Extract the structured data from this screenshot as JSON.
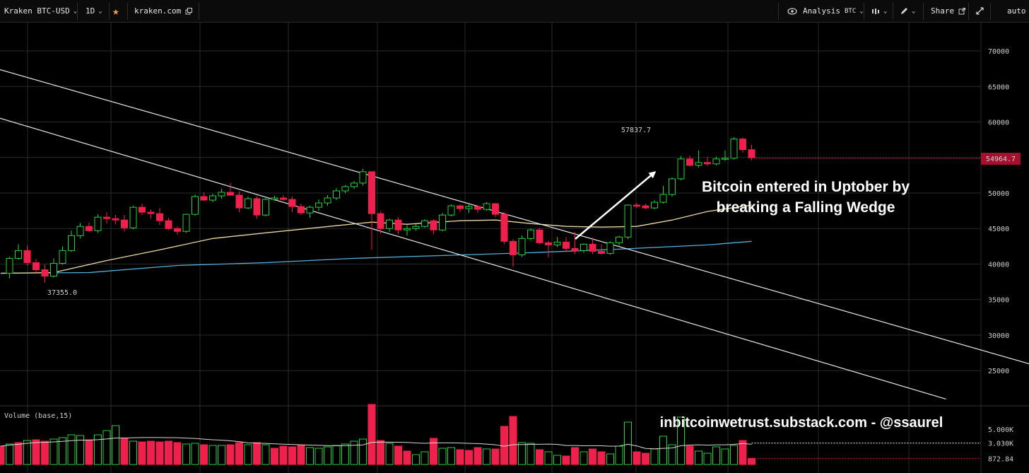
{
  "toolbar": {
    "symbol": "Kraken BTC-USD",
    "interval": "1D",
    "source": "kraken.com",
    "analysis": "Analysis",
    "analysis_sub": "BTC",
    "share": "Share",
    "scale_mode": "auto"
  },
  "icons": {
    "favorite": "star-icon",
    "external": "external-link-icon",
    "eye": "eye-icon",
    "candles": "candles-icon",
    "pencil": "pencil-icon",
    "expand": "expand-icon"
  },
  "colors": {
    "up": "#27d13a",
    "down": "#f0204c",
    "ma_fast": "#e8d9a0",
    "ma_slow": "#4fb3d9",
    "trendline": "#e8e8e8"
  },
  "annotations": {
    "message_line1": "Bitcoin entered in Uptober by",
    "message_line2": "breaking a Falling Wedge",
    "watermark": "inbitcoinwetrust.substack.com - @ssaurel",
    "high_label": "57837.7",
    "low_label": "37355.0",
    "last_price": "54964.7"
  },
  "volume_panel": {
    "title": "Volume (base,15)",
    "ticks": [
      "5.000K",
      "3.030K",
      "872.84"
    ]
  },
  "chart_data": {
    "type": "candlestick",
    "y_ticks": [
      70000,
      65000,
      60000,
      55000,
      50000,
      45000,
      40000,
      35000,
      30000,
      25000
    ],
    "ylim": [
      21000,
      74500
    ],
    "candles": [
      [
        null,
        null,
        null,
        null
      ],
      [
        38700,
        41000,
        38000,
        40800
      ],
      [
        40800,
        42800,
        40600,
        41900
      ],
      [
        41900,
        42600,
        39800,
        40200
      ],
      [
        40200,
        40700,
        38800,
        39200
      ],
      [
        39200,
        39900,
        37355,
        38300
      ],
      [
        38300,
        40800,
        38100,
        40100
      ],
      [
        40100,
        42500,
        39900,
        41900
      ],
      [
        41900,
        44700,
        41700,
        44000
      ],
      [
        44000,
        45800,
        43600,
        45300
      ],
      [
        45300,
        45900,
        44500,
        44700
      ],
      [
        44700,
        47000,
        44400,
        46600
      ],
      [
        46600,
        47300,
        45700,
        46400
      ],
      [
        46400,
        46900,
        45600,
        46200
      ],
      [
        46200,
        46900,
        44600,
        45100
      ],
      [
        45100,
        48200,
        44900,
        48000
      ],
      [
        48000,
        48500,
        46900,
        47300
      ],
      [
        47300,
        47700,
        46400,
        47100
      ],
      [
        47100,
        47900,
        45500,
        46100
      ],
      [
        46100,
        46500,
        44800,
        45000
      ],
      [
        45000,
        45300,
        44100,
        44600
      ],
      [
        44600,
        47100,
        44400,
        47000
      ],
      [
        47000,
        49800,
        46800,
        49500
      ],
      [
        49500,
        50100,
        48900,
        49000
      ],
      [
        49000,
        49900,
        48700,
        49600
      ],
      [
        49600,
        50600,
        49200,
        50100
      ],
      [
        50100,
        51400,
        49600,
        49700
      ],
      [
        49700,
        50200,
        47300,
        47900
      ],
      [
        47900,
        49500,
        47700,
        49200
      ],
      [
        49200,
        49500,
        46400,
        46900
      ],
      [
        46900,
        49300,
        46700,
        49100
      ],
      [
        49100,
        49600,
        48900,
        49300
      ],
      [
        49300,
        49700,
        48900,
        49100
      ],
      [
        49100,
        49500,
        47300,
        48100
      ],
      [
        48100,
        48500,
        46900,
        47200
      ],
      [
        47200,
        48200,
        46500,
        48000
      ],
      [
        48000,
        49100,
        47500,
        48600
      ],
      [
        48600,
        49700,
        48200,
        49300
      ],
      [
        49300,
        50700,
        49000,
        50300
      ],
      [
        50300,
        51100,
        50000,
        50900
      ],
      [
        50900,
        51700,
        50600,
        51400
      ],
      [
        51400,
        53400,
        51100,
        53000
      ],
      [
        53000,
        53000,
        42000,
        47100
      ],
      [
        47100,
        47400,
        44300,
        45000
      ],
      [
        45000,
        46400,
        44500,
        46200
      ],
      [
        46200,
        46600,
        44200,
        44800
      ],
      [
        44800,
        45500,
        44000,
        45000
      ],
      [
        45000,
        45600,
        44700,
        45300
      ],
      [
        45300,
        46300,
        45100,
        46100
      ],
      [
        46100,
        46300,
        44200,
        44800
      ],
      [
        44800,
        47200,
        44600,
        46900
      ],
      [
        46900,
        48400,
        46700,
        48200
      ],
      [
        48200,
        48400,
        47300,
        47800
      ],
      [
        47800,
        48400,
        47200,
        48100
      ],
      [
        48100,
        48300,
        47200,
        47700
      ],
      [
        47700,
        48700,
        47500,
        48500
      ],
      [
        48500,
        48600,
        46600,
        47000
      ],
      [
        47000,
        47300,
        42800,
        43200
      ],
      [
        43200,
        43500,
        39600,
        41300
      ],
      [
        41300,
        44000,
        41000,
        43600
      ],
      [
        43600,
        45000,
        43300,
        44800
      ],
      [
        44800,
        45100,
        42800,
        43000
      ],
      [
        43000,
        43300,
        40900,
        42700
      ],
      [
        42700,
        43800,
        42400,
        43100
      ],
      [
        43100,
        43800,
        41700,
        42200
      ],
      [
        42200,
        44500,
        41400,
        41900
      ],
      [
        41900,
        42900,
        41600,
        42800
      ],
      [
        42800,
        43700,
        41400,
        41800
      ],
      [
        41800,
        42800,
        41300,
        41500
      ],
      [
        41500,
        43200,
        41300,
        43000
      ],
      [
        43000,
        44000,
        42600,
        43800
      ],
      [
        43800,
        48400,
        43500,
        48300
      ],
      [
        48300,
        48600,
        47900,
        48200
      ],
      [
        48200,
        48500,
        47700,
        47900
      ],
      [
        47900,
        49000,
        47700,
        48700
      ],
      [
        48700,
        51000,
        48500,
        49800
      ],
      [
        49800,
        52200,
        49500,
        52000
      ],
      [
        52000,
        55200,
        51800,
        54800
      ],
      [
        54800,
        55300,
        53700,
        53900
      ],
      [
        53900,
        56000,
        53600,
        54300
      ],
      [
        54300,
        55100,
        53800,
        54100
      ],
      [
        54100,
        55100,
        53900,
        54800
      ],
      [
        54800,
        56000,
        54500,
        54900
      ],
      [
        54900,
        57837.7,
        54700,
        57600
      ],
      [
        57600,
        57800,
        55700,
        56100
      ],
      [
        56100,
        56800,
        54600,
        54964.7
      ]
    ],
    "volume": [
      [
        2600,
        0
      ],
      [
        2900,
        1
      ],
      [
        3100,
        0
      ],
      [
        3400,
        1
      ],
      [
        3500,
        0
      ],
      [
        3300,
        0
      ],
      [
        3600,
        1
      ],
      [
        3800,
        1
      ],
      [
        4200,
        1
      ],
      [
        4100,
        1
      ],
      [
        3500,
        0
      ],
      [
        4200,
        1
      ],
      [
        4800,
        1
      ],
      [
        5500,
        1
      ],
      [
        3700,
        0
      ],
      [
        3300,
        1
      ],
      [
        3200,
        0
      ],
      [
        3300,
        0
      ],
      [
        3200,
        0
      ],
      [
        3300,
        0
      ],
      [
        3100,
        0
      ],
      [
        2900,
        1
      ],
      [
        3000,
        1
      ],
      [
        2800,
        0
      ],
      [
        2700,
        1
      ],
      [
        2700,
        1
      ],
      [
        2800,
        0
      ],
      [
        3100,
        0
      ],
      [
        2800,
        1
      ],
      [
        3100,
        0
      ],
      [
        2800,
        1
      ],
      [
        2300,
        0
      ],
      [
        2600,
        0
      ],
      [
        2500,
        0
      ],
      [
        2700,
        0
      ],
      [
        2400,
        1
      ],
      [
        2300,
        1
      ],
      [
        2500,
        1
      ],
      [
        2700,
        1
      ],
      [
        2900,
        1
      ],
      [
        3300,
        1
      ],
      [
        3600,
        1
      ],
      [
        8500,
        0
      ],
      [
        3400,
        0
      ],
      [
        3000,
        1
      ],
      [
        2600,
        0
      ],
      [
        1900,
        0
      ],
      [
        1400,
        1
      ],
      [
        1800,
        1
      ],
      [
        3700,
        0
      ],
      [
        2300,
        1
      ],
      [
        2400,
        1
      ],
      [
        2100,
        0
      ],
      [
        2000,
        0
      ],
      [
        2400,
        0
      ],
      [
        2200,
        1
      ],
      [
        2200,
        0
      ],
      [
        5400,
        0
      ],
      [
        6800,
        0
      ],
      [
        3100,
        1
      ],
      [
        3000,
        1
      ],
      [
        2100,
        0
      ],
      [
        1800,
        1
      ],
      [
        1300,
        1
      ],
      [
        1200,
        0
      ],
      [
        2400,
        0
      ],
      [
        1800,
        1
      ],
      [
        2200,
        0
      ],
      [
        1800,
        0
      ],
      [
        1500,
        1
      ],
      [
        2600,
        1
      ],
      [
        6000,
        1
      ],
      [
        1800,
        0
      ],
      [
        1600,
        0
      ],
      [
        2200,
        1
      ],
      [
        4000,
        1
      ],
      [
        2800,
        1
      ],
      [
        6700,
        1
      ],
      [
        2600,
        0
      ],
      [
        1900,
        1
      ],
      [
        1600,
        1
      ],
      [
        2500,
        1
      ],
      [
        2200,
        1
      ],
      [
        2700,
        1
      ],
      [
        3400,
        0
      ],
      [
        872.84,
        0
      ]
    ],
    "ma_fast": [
      [
        0,
        38700
      ],
      [
        6,
        38800
      ],
      [
        12,
        40500
      ],
      [
        18,
        42000
      ],
      [
        24,
        43600
      ],
      [
        30,
        44400
      ],
      [
        38,
        45400
      ],
      [
        42,
        45900
      ],
      [
        46,
        45600
      ],
      [
        52,
        46100
      ],
      [
        56,
        46200
      ],
      [
        60,
        45700
      ],
      [
        64,
        45300
      ],
      [
        68,
        45200
      ],
      [
        72,
        45300
      ],
      [
        76,
        46200
      ],
      [
        80,
        47400
      ],
      [
        85,
        48300
      ]
    ],
    "ma_slow": [
      [
        0,
        38700
      ],
      [
        10,
        38800
      ],
      [
        20,
        39800
      ],
      [
        30,
        40200
      ],
      [
        40,
        40800
      ],
      [
        50,
        41200
      ],
      [
        60,
        41600
      ],
      [
        70,
        42100
      ],
      [
        80,
        42700
      ],
      [
        85,
        43200
      ]
    ],
    "trendlines": [
      {
        "x": [
          -3,
          118
        ],
        "y": [
          68400,
          25400
        ]
      },
      {
        "x": [
          -3,
          107
        ],
        "y": [
          61600,
          21000
        ]
      }
    ]
  }
}
